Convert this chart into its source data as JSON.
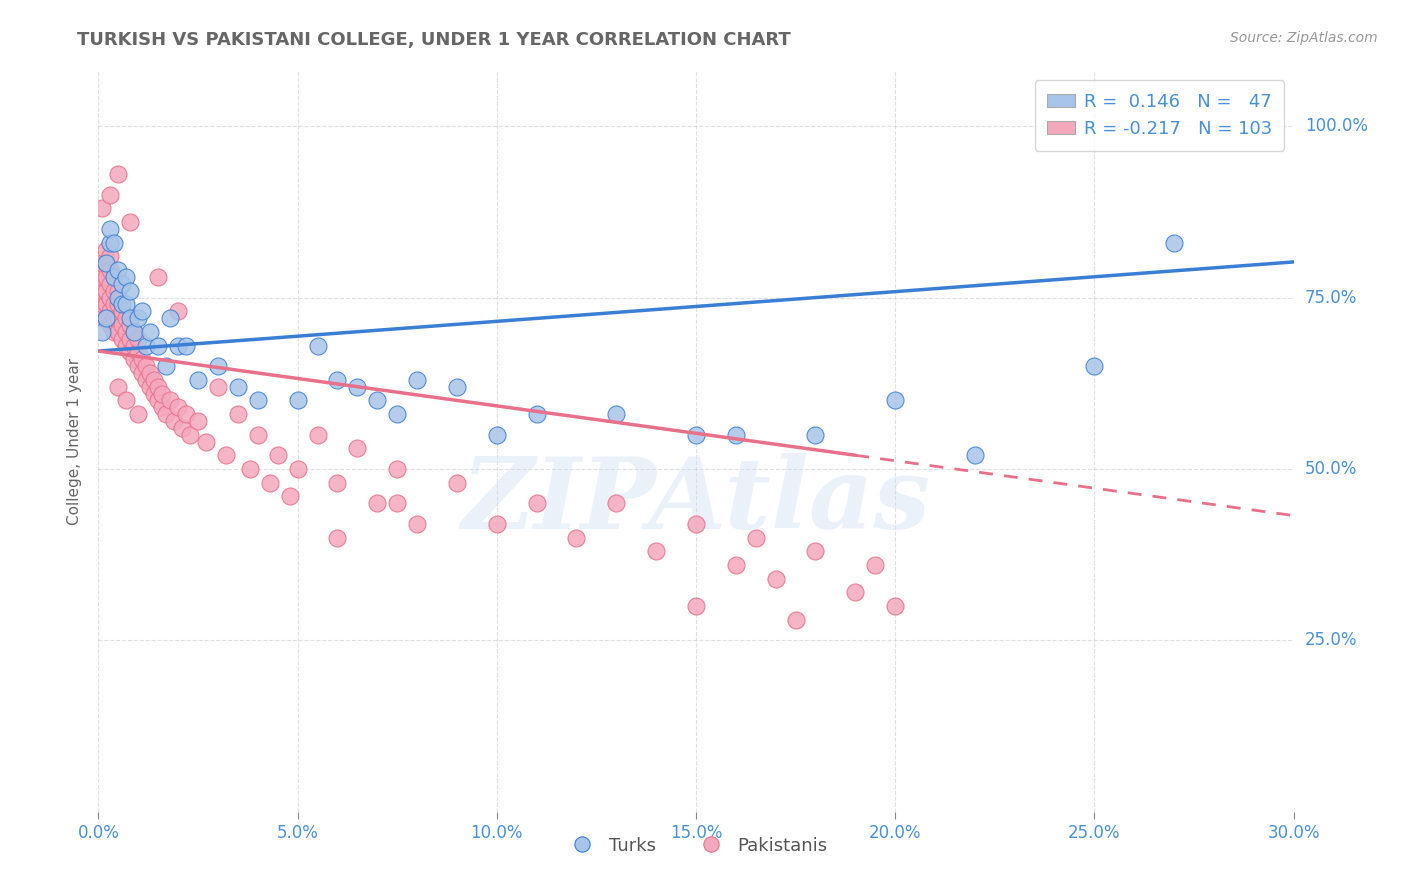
{
  "title": "TURKISH VS PAKISTANI COLLEGE, UNDER 1 YEAR CORRELATION CHART",
  "source_text": "Source: ZipAtlas.com",
  "ylabel": "College, Under 1 year",
  "xlim": [
    0.0,
    0.3
  ],
  "ylim": [
    0.0,
    1.08
  ],
  "xtick_labels": [
    "0.0%",
    "5.0%",
    "10.0%",
    "15.0%",
    "20.0%",
    "25.0%",
    "30.0%"
  ],
  "xtick_values": [
    0.0,
    0.05,
    0.1,
    0.15,
    0.2,
    0.25,
    0.3
  ],
  "ytick_labels": [
    "25.0%",
    "50.0%",
    "75.0%",
    "100.0%"
  ],
  "ytick_values": [
    0.25,
    0.5,
    0.75,
    1.0
  ],
  "turks_color": "#a8c4e8",
  "pakistanis_color": "#f4a8be",
  "turks_line_color": "#3a7fd5",
  "pakistanis_line_color": "#e8708a",
  "R_turks": 0.146,
  "N_turks": 47,
  "R_pakistanis": -0.217,
  "N_pakistanis": 103,
  "legend_label_turks": "Turks",
  "legend_label_pakistanis": "Pakistanis",
  "watermark": "ZIPAtlas",
  "watermark_color": "#c8d8f0",
  "background_color": "#ffffff",
  "grid_color": "#cccccc",
  "title_color": "#666666",
  "axis_label_color": "#666666",
  "tick_label_color": "#4a90d9",
  "source_color": "#999999",
  "turks_line_y0": 0.672,
  "turks_line_y1": 0.802,
  "pakistanis_line_y0": 0.672,
  "pakistanis_line_y1": 0.432,
  "turks_x": [
    0.001,
    0.002,
    0.002,
    0.003,
    0.003,
    0.004,
    0.004,
    0.005,
    0.005,
    0.006,
    0.006,
    0.007,
    0.007,
    0.008,
    0.008,
    0.009,
    0.01,
    0.011,
    0.012,
    0.013,
    0.015,
    0.017,
    0.018,
    0.02,
    0.022,
    0.025,
    0.03,
    0.035,
    0.04,
    0.05,
    0.055,
    0.06,
    0.065,
    0.07,
    0.075,
    0.08,
    0.09,
    0.1,
    0.11,
    0.13,
    0.15,
    0.16,
    0.18,
    0.2,
    0.22,
    0.25,
    0.27
  ],
  "turks_y": [
    0.7,
    0.72,
    0.8,
    0.83,
    0.85,
    0.83,
    0.78,
    0.75,
    0.79,
    0.77,
    0.74,
    0.78,
    0.74,
    0.76,
    0.72,
    0.7,
    0.72,
    0.73,
    0.68,
    0.7,
    0.68,
    0.65,
    0.72,
    0.68,
    0.68,
    0.63,
    0.65,
    0.62,
    0.6,
    0.6,
    0.68,
    0.63,
    0.62,
    0.6,
    0.58,
    0.63,
    0.62,
    0.55,
    0.58,
    0.58,
    0.55,
    0.55,
    0.55,
    0.6,
    0.52,
    0.65,
    0.83
  ],
  "pakistanis_x": [
    0.001,
    0.001,
    0.001,
    0.001,
    0.001,
    0.002,
    0.002,
    0.002,
    0.002,
    0.002,
    0.002,
    0.003,
    0.003,
    0.003,
    0.003,
    0.003,
    0.003,
    0.004,
    0.004,
    0.004,
    0.004,
    0.005,
    0.005,
    0.005,
    0.005,
    0.006,
    0.006,
    0.006,
    0.007,
    0.007,
    0.007,
    0.008,
    0.008,
    0.008,
    0.009,
    0.009,
    0.009,
    0.01,
    0.01,
    0.01,
    0.011,
    0.011,
    0.012,
    0.012,
    0.013,
    0.013,
    0.014,
    0.014,
    0.015,
    0.015,
    0.016,
    0.016,
    0.017,
    0.018,
    0.019,
    0.02,
    0.021,
    0.022,
    0.023,
    0.025,
    0.027,
    0.03,
    0.032,
    0.035,
    0.038,
    0.04,
    0.043,
    0.045,
    0.048,
    0.05,
    0.055,
    0.06,
    0.065,
    0.07,
    0.075,
    0.08,
    0.09,
    0.1,
    0.11,
    0.12,
    0.13,
    0.14,
    0.15,
    0.16,
    0.165,
    0.17,
    0.18,
    0.19,
    0.195,
    0.2,
    0.001,
    0.003,
    0.005,
    0.008,
    0.015,
    0.02,
    0.06,
    0.075,
    0.15,
    0.175,
    0.005,
    0.007,
    0.01
  ],
  "pakistanis_y": [
    0.72,
    0.74,
    0.76,
    0.78,
    0.8,
    0.72,
    0.74,
    0.76,
    0.78,
    0.8,
    0.82,
    0.71,
    0.73,
    0.75,
    0.77,
    0.79,
    0.81,
    0.7,
    0.72,
    0.74,
    0.76,
    0.7,
    0.72,
    0.74,
    0.76,
    0.69,
    0.71,
    0.73,
    0.68,
    0.7,
    0.72,
    0.67,
    0.69,
    0.71,
    0.66,
    0.68,
    0.7,
    0.65,
    0.67,
    0.69,
    0.64,
    0.66,
    0.63,
    0.65,
    0.62,
    0.64,
    0.61,
    0.63,
    0.6,
    0.62,
    0.59,
    0.61,
    0.58,
    0.6,
    0.57,
    0.59,
    0.56,
    0.58,
    0.55,
    0.57,
    0.54,
    0.62,
    0.52,
    0.58,
    0.5,
    0.55,
    0.48,
    0.52,
    0.46,
    0.5,
    0.55,
    0.48,
    0.53,
    0.45,
    0.5,
    0.42,
    0.48,
    0.42,
    0.45,
    0.4,
    0.45,
    0.38,
    0.42,
    0.36,
    0.4,
    0.34,
    0.38,
    0.32,
    0.36,
    0.3,
    0.88,
    0.9,
    0.93,
    0.86,
    0.78,
    0.73,
    0.4,
    0.45,
    0.3,
    0.28,
    0.62,
    0.6,
    0.58
  ]
}
